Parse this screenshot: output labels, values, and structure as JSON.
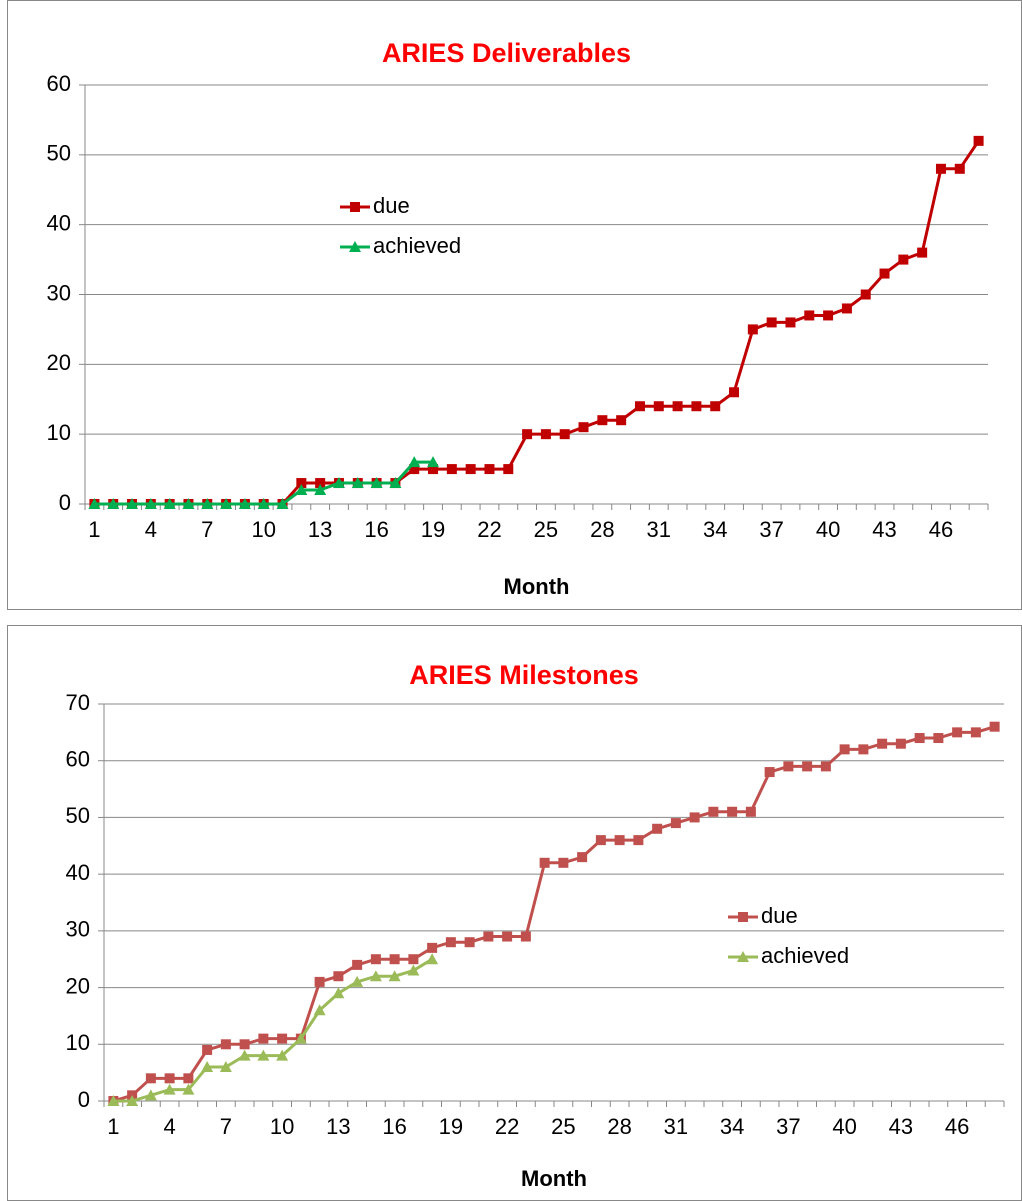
{
  "chart_data": [
    {
      "type": "line",
      "title": "ARIES Deliverables",
      "x_label": "Month",
      "categories": [
        1,
        null,
        null,
        4,
        null,
        null,
        7,
        null,
        null,
        10,
        null,
        null,
        13,
        null,
        null,
        16,
        null,
        null,
        19,
        null,
        null,
        22,
        null,
        null,
        25,
        null,
        null,
        28,
        null,
        null,
        31,
        null,
        null,
        34,
        null,
        null,
        37,
        null,
        null,
        40,
        null,
        null,
        43,
        null,
        null,
        46,
        null,
        null
      ],
      "ylim": [
        0,
        60
      ],
      "yticks": [
        0,
        10,
        20,
        30,
        40,
        50,
        60
      ],
      "grid": true,
      "series": [
        {
          "name": "due",
          "color": "#c00000",
          "marker": "square",
          "values": [
            0,
            0,
            0,
            0,
            0,
            0,
            0,
            0,
            0,
            0,
            0,
            3,
            3,
            3,
            3,
            3,
            3,
            5,
            5,
            5,
            5,
            5,
            5,
            10,
            10,
            10,
            11,
            12,
            12,
            14,
            14,
            14,
            14,
            14,
            16,
            25,
            26,
            26,
            27,
            27,
            28,
            30,
            33,
            35,
            36,
            48,
            48,
            52
          ]
        },
        {
          "name": "achieved",
          "color": "#00b050",
          "marker": "triangle",
          "values": [
            0,
            0,
            0,
            0,
            0,
            0,
            0,
            0,
            0,
            0,
            0,
            2,
            2,
            3,
            3,
            3,
            3,
            6,
            6,
            null,
            null,
            null,
            null,
            null,
            null,
            null,
            null,
            null,
            null,
            null,
            null,
            null,
            null,
            null,
            null,
            null,
            null,
            null,
            null,
            null,
            null,
            null,
            null,
            null,
            null,
            null,
            null,
            null
          ]
        }
      ]
    },
    {
      "type": "line",
      "title": "ARIES Milestones",
      "x_label": "Month",
      "categories": [
        1,
        null,
        null,
        4,
        null,
        null,
        7,
        null,
        null,
        10,
        null,
        null,
        13,
        null,
        null,
        16,
        null,
        null,
        19,
        null,
        null,
        22,
        null,
        null,
        25,
        null,
        null,
        28,
        null,
        null,
        31,
        null,
        null,
        34,
        null,
        null,
        37,
        null,
        null,
        40,
        null,
        null,
        43,
        null,
        null,
        46,
        null,
        null
      ],
      "ylim": [
        0,
        70
      ],
      "yticks": [
        0,
        10,
        20,
        30,
        40,
        50,
        60,
        70
      ],
      "grid": true,
      "series": [
        {
          "name": "due",
          "color": "#c0504d",
          "marker": "square",
          "values": [
            0,
            1,
            4,
            4,
            4,
            9,
            10,
            10,
            11,
            11,
            11,
            21,
            22,
            24,
            25,
            25,
            25,
            27,
            28,
            28,
            29,
            29,
            29,
            42,
            42,
            43,
            46,
            46,
            46,
            48,
            49,
            50,
            51,
            51,
            51,
            58,
            59,
            59,
            59,
            62,
            62,
            63,
            63,
            64,
            64,
            65,
            65,
            66
          ]
        },
        {
          "name": "achieved",
          "color": "#9bbb59",
          "marker": "triangle",
          "values": [
            0,
            0,
            1,
            2,
            2,
            6,
            6,
            8,
            8,
            8,
            11,
            16,
            19,
            21,
            22,
            22,
            23,
            25,
            null,
            null,
            null,
            null,
            null,
            null,
            null,
            null,
            null,
            null,
            null,
            null,
            null,
            null,
            null,
            null,
            null,
            null,
            null,
            null,
            null,
            null,
            null,
            null,
            null,
            null,
            null,
            null,
            null,
            null
          ]
        }
      ]
    }
  ]
}
